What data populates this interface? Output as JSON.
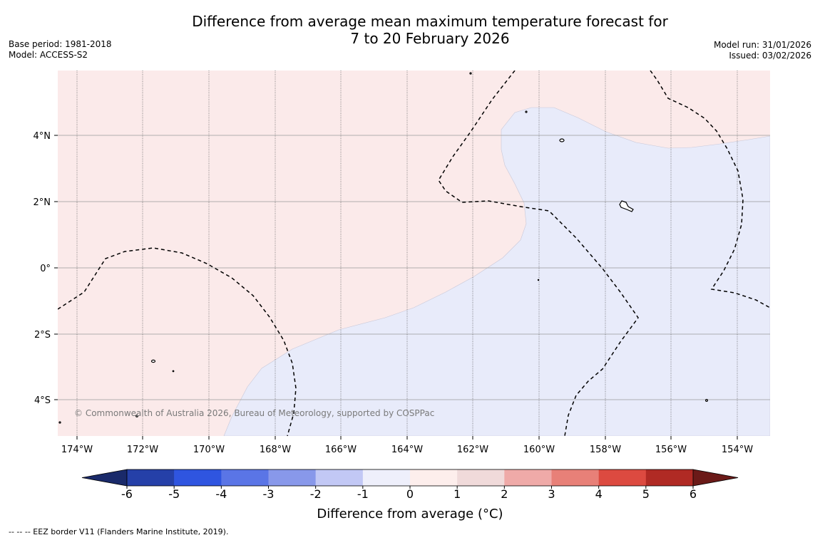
{
  "title": {
    "line1": "Difference from average mean maximum temperature forecast for",
    "line2": "7 to 20 February 2026"
  },
  "meta_left": {
    "base_period": "Base period: 1981-2018",
    "model": "Model: ACCESS-S2"
  },
  "meta_right": {
    "model_run": "Model run: 31/01/2026",
    "issued": "Issued: 03/02/2026"
  },
  "map": {
    "lat_labels": [
      "4°N",
      "2°N",
      "0°",
      "2°S",
      "4°S"
    ],
    "lon_labels": [
      "174°W",
      "172°W",
      "170°W",
      "168°W",
      "166°W",
      "164°W",
      "162°W",
      "160°W",
      "158°W",
      "156°W",
      "154°W"
    ],
    "copyright": "© Commonwealth of Australia 2026, Bureau of Meteorology, supported by COSPPac",
    "colors": {
      "warm_fill": "#fbeaea",
      "cool_fill": "#e8ebfa",
      "grid": "#999999"
    }
  },
  "colorbar": {
    "label": "Difference from average (°C)",
    "ticks": [
      "-6",
      "-5",
      "-4",
      "-3",
      "-2",
      "-1",
      "0",
      "1",
      "2",
      "3",
      "4",
      "5",
      "6"
    ],
    "under_color": "#1a2a6a",
    "over_color": "#6b1a18",
    "colors": [
      "#2540a8",
      "#2f55e0",
      "#5a75e6",
      "#8898ea",
      "#c2c8f5",
      "#eeeffb",
      "#fdeeec",
      "#f0dada",
      "#efaaa8",
      "#e88078",
      "#dc4a40",
      "#b02a24"
    ]
  },
  "footer": {
    "legend": "--  --  -- EEZ border V11 (Flanders Marine Institute, 2019)."
  }
}
